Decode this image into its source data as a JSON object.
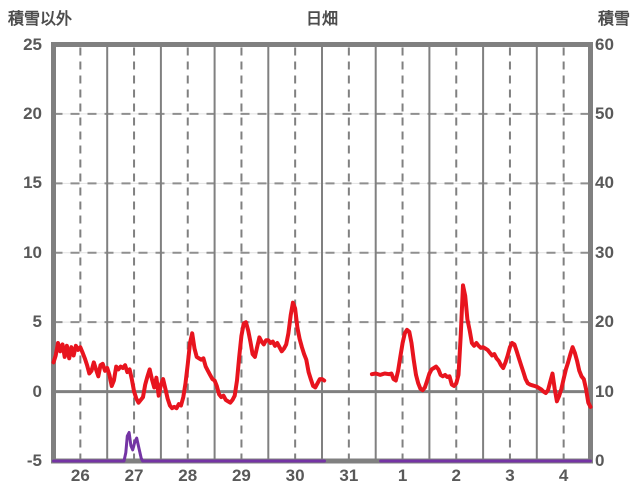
{
  "header": {
    "left_axis_title": "積雪以外",
    "chart_title": "日畑",
    "right_axis_title": "積雪"
  },
  "chart_data": {
    "type": "line",
    "title": "日畑",
    "left_axis": {
      "label": "積雪以外",
      "min": -5,
      "max": 25,
      "ticks": [
        25,
        20,
        15,
        10,
        5,
        0,
        -5
      ]
    },
    "right_axis": {
      "label": "積雪",
      "min": 0,
      "max": 60,
      "ticks": [
        60,
        50,
        40,
        30,
        20,
        10,
        0
      ]
    },
    "x_axis": {
      "labels": [
        "26",
        "27",
        "28",
        "29",
        "30",
        "31",
        "1",
        "2",
        "3",
        "4"
      ],
      "hours_total": 240,
      "hours_per_day": 24
    },
    "grid": {
      "horizontal_dashed_levels": [
        20,
        15,
        10,
        5
      ],
      "zero_line_level": 0,
      "vertical_solid": "day-boundaries",
      "vertical_dashed": "day-noons"
    },
    "colors": {
      "red_series": "#e8141e",
      "purple_series": "#7434a4",
      "grid": "#808080",
      "text": "#595959"
    },
    "series": [
      {
        "name": "積雪以外",
        "axis": "left",
        "color": "#e8141e",
        "width": 4,
        "segments": [
          [
            [
              0,
              2.1
            ],
            [
              1,
              2.6
            ],
            [
              2,
              3.5
            ],
            [
              3,
              2.9
            ],
            [
              4,
              3.4
            ],
            [
              5,
              2.5
            ],
            [
              6,
              3.3
            ],
            [
              7,
              2.4
            ],
            [
              8,
              3.2
            ],
            [
              9,
              2.6
            ],
            [
              10,
              3.3
            ],
            [
              11,
              3.0
            ],
            [
              12,
              3.2
            ],
            [
              13,
              2.8
            ],
            [
              14,
              2.4
            ],
            [
              15,
              1.9
            ],
            [
              16,
              1.3
            ],
            [
              17,
              1.5
            ],
            [
              18,
              2.1
            ],
            [
              19,
              1.6
            ],
            [
              20,
              1.1
            ],
            [
              21,
              1.9
            ],
            [
              22,
              2.0
            ],
            [
              23,
              1.5
            ],
            [
              24,
              1.7
            ],
            [
              25,
              1.2
            ],
            [
              26,
              0.4
            ],
            [
              27,
              0.8
            ],
            [
              28,
              1.8
            ],
            [
              29,
              1.6
            ],
            [
              30,
              1.8
            ],
            [
              31,
              1.7
            ],
            [
              32,
              1.9
            ],
            [
              33,
              1.4
            ],
            [
              34,
              1.6
            ],
            [
              35,
              0.9
            ],
            [
              36,
              0.0
            ],
            [
              37,
              -0.5
            ],
            [
              38,
              -0.8
            ],
            [
              39,
              -0.6
            ],
            [
              40,
              -0.4
            ],
            [
              41,
              0.5
            ],
            [
              42,
              1.1
            ],
            [
              43,
              1.6
            ],
            [
              44,
              0.9
            ],
            [
              45,
              0.3
            ],
            [
              46,
              1.0
            ],
            [
              47,
              -0.3
            ],
            [
              48,
              0.5
            ],
            [
              49,
              0.9
            ],
            [
              50,
              0.2
            ],
            [
              51,
              -0.5
            ],
            [
              52,
              -1.0
            ],
            [
              53,
              -1.2
            ],
            [
              54,
              -1.1
            ],
            [
              55,
              -1.2
            ],
            [
              56,
              -0.9
            ],
            [
              57,
              -1.0
            ],
            [
              58,
              -0.4
            ],
            [
              59,
              0.6
            ],
            [
              60,
              2.0
            ],
            [
              61,
              3.5
            ],
            [
              62,
              4.2
            ],
            [
              63,
              3.1
            ],
            [
              64,
              2.5
            ],
            [
              65,
              2.4
            ],
            [
              66,
              2.3
            ],
            [
              67,
              2.4
            ],
            [
              68,
              1.8
            ],
            [
              69,
              1.5
            ],
            [
              70,
              1.2
            ],
            [
              71,
              0.9
            ],
            [
              72,
              0.8
            ],
            [
              73,
              0.4
            ],
            [
              74,
              -0.2
            ],
            [
              75,
              -0.4
            ],
            [
              76,
              -0.3
            ],
            [
              77,
              -0.6
            ],
            [
              78,
              -0.7
            ],
            [
              79,
              -0.8
            ],
            [
              80,
              -0.6
            ],
            [
              81,
              -0.3
            ],
            [
              82,
              0.8
            ],
            [
              83,
              2.5
            ],
            [
              84,
              4.0
            ],
            [
              85,
              4.9
            ],
            [
              86,
              5.0
            ],
            [
              87,
              4.4
            ],
            [
              88,
              3.6
            ],
            [
              89,
              2.7
            ],
            [
              90,
              2.5
            ],
            [
              91,
              3.2
            ],
            [
              92,
              3.9
            ],
            [
              93,
              3.6
            ],
            [
              94,
              3.4
            ],
            [
              95,
              3.7
            ],
            [
              96,
              3.7
            ],
            [
              97,
              3.5
            ],
            [
              98,
              3.6
            ],
            [
              99,
              3.3
            ],
            [
              100,
              3.5
            ],
            [
              101,
              3.2
            ],
            [
              102,
              2.9
            ],
            [
              103,
              3.1
            ],
            [
              104,
              3.4
            ],
            [
              105,
              4.2
            ],
            [
              106,
              5.5
            ],
            [
              107,
              6.4
            ],
            [
              108,
              6.0
            ],
            [
              109,
              4.6
            ],
            [
              110,
              3.8
            ],
            [
              111,
              3.2
            ],
            [
              112,
              2.7
            ],
            [
              113,
              2.3
            ],
            [
              114,
              1.4
            ],
            [
              115,
              0.9
            ],
            [
              116,
              0.4
            ],
            [
              117,
              0.3
            ],
            [
              118,
              0.6
            ],
            [
              119,
              0.9
            ],
            [
              120,
              0.9
            ],
            [
              121,
              0.8
            ]
          ],
          [
            [
              142.3,
              1.25
            ],
            [
              144,
              1.3
            ],
            [
              146,
              1.2
            ],
            [
              148,
              1.3
            ],
            [
              150,
              1.25
            ],
            [
              151,
              1.3
            ],
            [
              152,
              0.9
            ],
            [
              153,
              0.8
            ],
            [
              154,
              1.5
            ],
            [
              155,
              2.5
            ],
            [
              156,
              3.5
            ],
            [
              157,
              4.2
            ],
            [
              158,
              4.45
            ],
            [
              159,
              4.3
            ],
            [
              160,
              3.5
            ],
            [
              161,
              2.3
            ],
            [
              162,
              1.2
            ],
            [
              163,
              0.6
            ],
            [
              164,
              0.2
            ],
            [
              165,
              0.1
            ],
            [
              166,
              0.3
            ],
            [
              167,
              0.8
            ],
            [
              168,
              1.3
            ],
            [
              169,
              1.6
            ],
            [
              170,
              1.7
            ],
            [
              171,
              1.8
            ],
            [
              172,
              1.6
            ],
            [
              173,
              1.2
            ],
            [
              174,
              1.1
            ],
            [
              175,
              1.2
            ],
            [
              176,
              1.05
            ],
            [
              177,
              1.1
            ],
            [
              178,
              0.5
            ],
            [
              179,
              0.4
            ],
            [
              180,
              0.6
            ],
            [
              181,
              1.2
            ],
            [
              182,
              4.0
            ],
            [
              183,
              7.65
            ],
            [
              184,
              6.9
            ],
            [
              185,
              5.2
            ],
            [
              186,
              4.4
            ],
            [
              187,
              3.5
            ],
            [
              188,
              3.3
            ],
            [
              189,
              3.5
            ],
            [
              190,
              3.3
            ],
            [
              191,
              3.15
            ],
            [
              192,
              3.2
            ],
            [
              193,
              3.1
            ],
            [
              194,
              3.0
            ],
            [
              195,
              2.8
            ],
            [
              196,
              2.6
            ],
            [
              197,
              2.7
            ],
            [
              198,
              2.4
            ],
            [
              199,
              2.2
            ],
            [
              200,
              1.9
            ],
            [
              201,
              1.7
            ],
            [
              202,
              2.1
            ],
            [
              203,
              2.6
            ],
            [
              204,
              3.2
            ],
            [
              205,
              3.5
            ],
            [
              206,
              3.4
            ],
            [
              207,
              2.9
            ],
            [
              208,
              2.4
            ],
            [
              209,
              1.9
            ],
            [
              210,
              1.4
            ],
            [
              211,
              0.9
            ],
            [
              212,
              0.6
            ],
            [
              213,
              0.5
            ],
            [
              214,
              0.45
            ],
            [
              215,
              0.4
            ],
            [
              216,
              0.35
            ],
            [
              217,
              0.25
            ],
            [
              218,
              0.15
            ],
            [
              219,
              0.0
            ],
            [
              220,
              -0.1
            ],
            [
              221,
              0.1
            ],
            [
              222,
              0.7
            ],
            [
              223,
              1.3
            ],
            [
              224,
              0.2
            ],
            [
              225,
              -0.7
            ],
            [
              226,
              -0.3
            ],
            [
              227,
              0.2
            ],
            [
              228,
              0.9
            ],
            [
              229,
              1.6
            ],
            [
              230,
              2.1
            ],
            [
              231,
              2.7
            ],
            [
              232,
              3.2
            ],
            [
              233,
              2.8
            ],
            [
              234,
              2.2
            ],
            [
              235,
              1.5
            ],
            [
              236,
              1.1
            ],
            [
              237,
              0.9
            ],
            [
              238,
              0.2
            ],
            [
              239,
              -0.8
            ],
            [
              240,
              -1.1
            ]
          ]
        ]
      },
      {
        "name": "積雪",
        "axis": "right",
        "color": "#7434a4",
        "width": 3,
        "segments": [
          [
            [
              0,
              0
            ],
            [
              31.5,
              0
            ],
            [
              32.3,
              1.2
            ],
            [
              33.0,
              3.6
            ],
            [
              33.8,
              4.1
            ],
            [
              34.6,
              2.2
            ],
            [
              35.4,
              1.6
            ],
            [
              36.4,
              2.8
            ],
            [
              37.2,
              3.3
            ],
            [
              38.2,
              1.8
            ],
            [
              39.2,
              0.4
            ],
            [
              39.8,
              0
            ],
            [
              121.1,
              0
            ]
          ],
          [
            [
              146.2,
              0
            ],
            [
              240,
              0
            ]
          ]
        ]
      }
    ]
  }
}
